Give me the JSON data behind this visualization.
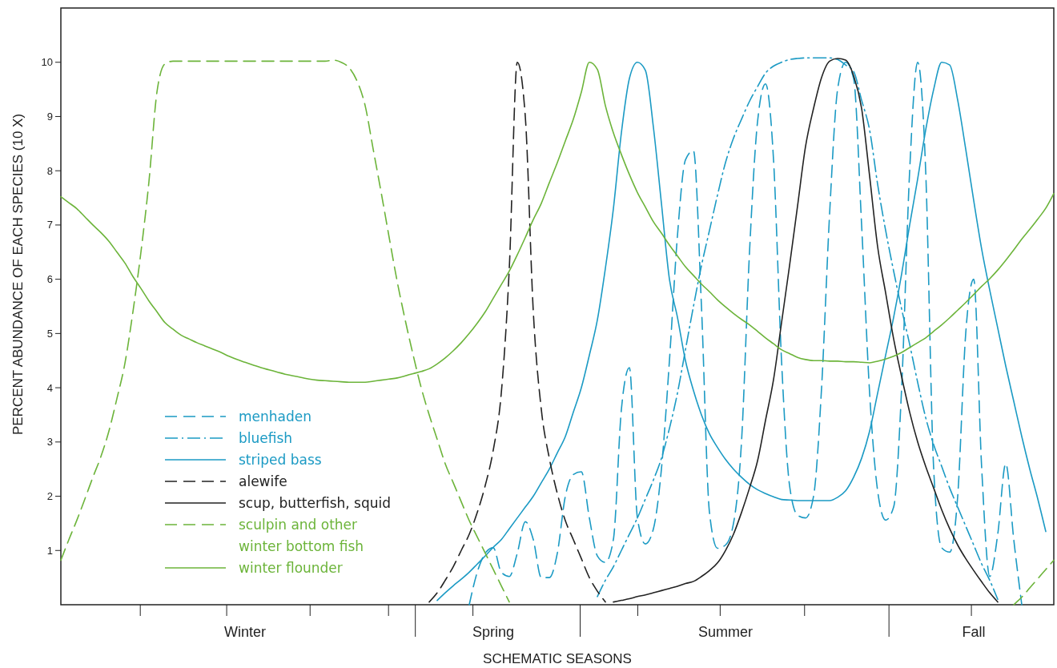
{
  "chart_data": {
    "type": "line",
    "xlabel": "SCHEMATIC SEASONS",
    "ylabel": "PERCENT ABUNDANCE OF EACH SPECIES (10 X)",
    "categories": [
      null,
      null,
      null,
      null,
      null,
      null,
      null,
      null,
      null,
      null,
      null,
      null,
      null,
      null,
      null,
      null,
      null,
      null,
      null,
      null,
      null,
      null,
      null,
      "Winter",
      null,
      null,
      null,
      null,
      null,
      null,
      null,
      null,
      null,
      null,
      null,
      null,
      null,
      null,
      null,
      null,
      null,
      null,
      null,
      null,
      null,
      null,
      null,
      null,
      null,
      null,
      null,
      null,
      null,
      null,
      "Spring",
      null,
      null,
      null,
      null,
      null,
      null,
      null,
      null,
      null,
      null,
      null,
      null,
      null,
      null,
      null,
      null,
      null,
      null,
      null,
      null,
      null,
      null,
      null,
      null,
      null,
      null,
      null,
      null,
      "Summer",
      null,
      null,
      null,
      null,
      null,
      null,
      null,
      null,
      null,
      null,
      null,
      null,
      null,
      null,
      null,
      null,
      null,
      null,
      null,
      null,
      null,
      null,
      null,
      null,
      null,
      null,
      null,
      null,
      null,
      null,
      "Fall",
      null,
      null,
      null,
      null,
      null,
      null,
      null,
      null,
      null,
      null
    ],
    "ylim": [
      0,
      11
    ],
    "yticks": [
      1,
      2,
      3,
      4,
      5,
      6,
      7,
      8,
      9,
      10
    ],
    "legend": "bottom left",
    "series": [
      {
        "name": "menhaden",
        "color": "#1b9ac4",
        "line_style": "dashed",
        "values": [
          null,
          null,
          null,
          null,
          null,
          null,
          null,
          null,
          null,
          null,
          null,
          null,
          null,
          null,
          null,
          null,
          null,
          null,
          null,
          null,
          null,
          null,
          null,
          null,
          null,
          null,
          null,
          null,
          null,
          null,
          null,
          null,
          null,
          null,
          null,
          null,
          null,
          null,
          null,
          null,
          null,
          null,
          null,
          null,
          null,
          null,
          null,
          null,
          null,
          null,
          null,
          0.0,
          0.6,
          0.95,
          1.05,
          0.6,
          0.52,
          0.95,
          1.53,
          1.2,
          0.5,
          0.5,
          0.95,
          2.0,
          2.4,
          2.45,
          1.6,
          0.9,
          0.78,
          1.2,
          3.6,
          4.37,
          1.6,
          1.12,
          1.4,
          2.5,
          4.5,
          6.8,
          8.2,
          8.37,
          5.5,
          1.7,
          1.04,
          1.1,
          1.5,
          3.0,
          6.5,
          8.9,
          9.6,
          8.2,
          4.5,
          2.2,
          1.65,
          1.6,
          2.0,
          4.0,
          7.2,
          9.5,
          10.0,
          9.7,
          7.0,
          3.9,
          2.1,
          1.56,
          1.8,
          4.0,
          8.0,
          10.0,
          8.0,
          2.5,
          1.05,
          0.97,
          2.0,
          5.0,
          6.0,
          2.5,
          0.52,
          1.3,
          2.6,
          1.2,
          0.0,
          null,
          null,
          null,
          null
        ]
      },
      {
        "name": "bluefish",
        "color": "#1b9ac4",
        "line_style": "dashdot",
        "values": [
          null,
          null,
          null,
          null,
          null,
          null,
          null,
          null,
          null,
          null,
          null,
          null,
          null,
          null,
          null,
          null,
          null,
          null,
          null,
          null,
          null,
          null,
          null,
          null,
          null,
          null,
          null,
          null,
          null,
          null,
          null,
          null,
          null,
          null,
          null,
          null,
          null,
          null,
          null,
          null,
          null,
          null,
          null,
          null,
          null,
          null,
          null,
          null,
          null,
          null,
          null,
          null,
          null,
          null,
          null,
          null,
          null,
          null,
          null,
          null,
          null,
          null,
          null,
          null,
          null,
          null,
          null,
          0.15,
          0.45,
          0.7,
          1.0,
          1.3,
          1.6,
          1.95,
          2.3,
          2.7,
          3.25,
          3.9,
          4.7,
          5.5,
          6.25,
          6.9,
          7.55,
          8.15,
          8.6,
          8.95,
          9.28,
          9.55,
          9.8,
          9.93,
          10.0,
          10.05,
          10.07,
          10.08,
          10.08,
          10.08,
          10.08,
          10.05,
          9.95,
          9.83,
          9.3,
          8.75,
          7.75,
          6.9,
          6.15,
          5.45,
          4.8,
          4.1,
          3.45,
          2.95,
          2.55,
          2.15,
          1.8,
          1.45,
          1.1,
          0.75,
          0.45,
          0.1,
          null,
          null,
          null,
          null,
          null,
          null,
          null
        ]
      },
      {
        "name": "striped bass",
        "color": "#1b9ac4",
        "line_style": "solid",
        "values": [
          null,
          null,
          null,
          null,
          null,
          null,
          null,
          null,
          null,
          null,
          null,
          null,
          null,
          null,
          null,
          null,
          null,
          null,
          null,
          null,
          null,
          null,
          null,
          null,
          null,
          null,
          null,
          null,
          null,
          null,
          null,
          null,
          null,
          null,
          null,
          null,
          null,
          null,
          null,
          null,
          null,
          null,
          null,
          null,
          null,
          null,
          null,
          0.08,
          0.22,
          0.35,
          0.47,
          0.6,
          0.75,
          0.9,
          1.06,
          1.2,
          1.4,
          1.6,
          1.8,
          2.0,
          2.25,
          2.5,
          2.8,
          3.1,
          3.55,
          4.0,
          4.6,
          5.25,
          6.2,
          7.3,
          8.7,
          9.7,
          10.0,
          9.85,
          8.8,
          7.4,
          6.0,
          5.3,
          4.5,
          3.95,
          3.5,
          3.15,
          2.9,
          2.68,
          2.5,
          2.35,
          2.22,
          2.12,
          2.05,
          1.99,
          1.94,
          1.93,
          1.92,
          1.92,
          1.92,
          1.92,
          1.92,
          1.98,
          2.1,
          2.35,
          2.7,
          3.2,
          3.9,
          4.6,
          5.3,
          6.1,
          7.0,
          7.85,
          8.75,
          9.5,
          10.0,
          9.95,
          9.3,
          8.4,
          7.45,
          6.55,
          5.8,
          5.1,
          4.4,
          3.75,
          3.1,
          2.5,
          1.95,
          1.35,
          null
        ]
      },
      {
        "name": "alewife",
        "color": "#222222",
        "line_style": "dashed",
        "values": [
          null,
          null,
          null,
          null,
          null,
          null,
          null,
          null,
          null,
          null,
          null,
          null,
          null,
          null,
          null,
          null,
          null,
          null,
          null,
          null,
          null,
          null,
          null,
          null,
          null,
          null,
          null,
          null,
          null,
          null,
          null,
          null,
          null,
          null,
          null,
          null,
          null,
          null,
          null,
          null,
          null,
          null,
          null,
          null,
          null,
          null,
          0.05,
          0.22,
          0.45,
          0.7,
          1.0,
          1.3,
          1.7,
          2.2,
          2.85,
          3.9,
          6.2,
          10.0,
          9.0,
          5.4,
          3.6,
          2.7,
          2.05,
          1.55,
          1.2,
          0.85,
          0.5,
          0.25,
          0.05,
          null,
          null,
          null,
          null,
          null,
          null,
          null,
          null,
          null,
          null,
          null,
          null,
          null,
          null,
          null,
          null,
          null,
          null,
          null,
          null,
          null,
          null,
          null,
          null,
          null,
          null,
          null,
          null,
          null,
          null,
          null,
          null,
          null,
          null,
          null,
          null,
          null,
          null,
          null,
          null,
          null,
          null,
          null,
          null,
          null,
          null,
          null,
          null,
          null,
          null,
          null,
          null,
          null,
          null,
          null,
          null
        ]
      },
      {
        "name": "scup, butterfish, squid",
        "color": "#222222",
        "line_style": "solid",
        "values": [
          null,
          null,
          null,
          null,
          null,
          null,
          null,
          null,
          null,
          null,
          null,
          null,
          null,
          null,
          null,
          null,
          null,
          null,
          null,
          null,
          null,
          null,
          null,
          null,
          null,
          null,
          null,
          null,
          null,
          null,
          null,
          null,
          null,
          null,
          null,
          null,
          null,
          null,
          null,
          null,
          null,
          null,
          null,
          null,
          null,
          null,
          null,
          null,
          null,
          null,
          null,
          null,
          null,
          null,
          null,
          null,
          null,
          null,
          null,
          null,
          null,
          null,
          null,
          null,
          null,
          null,
          null,
          null,
          null,
          0.05,
          0.08,
          0.11,
          0.15,
          0.18,
          0.22,
          0.26,
          0.3,
          0.34,
          0.39,
          0.43,
          0.52,
          0.63,
          0.77,
          1.0,
          1.3,
          1.7,
          2.15,
          2.65,
          3.4,
          4.15,
          5.2,
          6.25,
          7.35,
          8.45,
          9.15,
          9.72,
          10.02,
          10.07,
          10.04,
          9.75,
          9.15,
          7.9,
          6.6,
          5.75,
          4.9,
          4.2,
          3.55,
          3.0,
          2.55,
          2.15,
          1.75,
          1.4,
          1.1,
          0.85,
          0.63,
          0.42,
          0.22,
          0.05,
          null,
          null,
          null,
          null,
          null,
          null,
          null
        ]
      },
      {
        "name": "sculpin and other\nwinter bottom fish",
        "color": "#6cb43a",
        "line_style": "dashed",
        "values": [
          0.82,
          1.2,
          1.56,
          1.95,
          2.35,
          2.73,
          3.2,
          3.8,
          4.45,
          5.4,
          6.5,
          7.8,
          9.45,
          9.97,
          10.02,
          10.02,
          10.02,
          10.02,
          10.02,
          10.02,
          10.02,
          10.02,
          10.02,
          10.02,
          10.02,
          10.02,
          10.02,
          10.02,
          10.02,
          10.02,
          10.02,
          10.02,
          10.02,
          10.02,
          10.04,
          10.0,
          9.9,
          9.65,
          9.2,
          8.4,
          7.6,
          6.77,
          5.96,
          5.25,
          4.6,
          4.0,
          3.5,
          3.05,
          2.6,
          2.25,
          1.9,
          1.55,
          1.25,
          0.95,
          0.65,
          0.35,
          0.05,
          null,
          null,
          null,
          null,
          null,
          null,
          null,
          null,
          null,
          null,
          null,
          null,
          null,
          null,
          null,
          null,
          null,
          null,
          null,
          null,
          null,
          null,
          null,
          null,
          null,
          null,
          null,
          null,
          null,
          null,
          null,
          null,
          null,
          null,
          null,
          null,
          null,
          null,
          null,
          null,
          null,
          null,
          null,
          null,
          null,
          null,
          null,
          null,
          null,
          null,
          null,
          null,
          null,
          null,
          null,
          null,
          null,
          null,
          null,
          null,
          null,
          null,
          0.0,
          0.14,
          0.31,
          0.48,
          0.65,
          0.82
        ]
      },
      {
        "name": "winter flounder",
        "color": "#6cb43a",
        "line_style": "solid",
        "values": [
          7.52,
          7.41,
          7.3,
          7.15,
          7.0,
          6.86,
          6.7,
          6.5,
          6.3,
          6.05,
          5.83,
          5.6,
          5.4,
          5.2,
          5.08,
          4.97,
          4.9,
          4.83,
          4.77,
          4.71,
          4.65,
          4.58,
          4.52,
          4.47,
          4.42,
          4.37,
          4.33,
          4.29,
          4.25,
          4.22,
          4.19,
          4.16,
          4.14,
          4.13,
          4.12,
          4.11,
          4.1,
          4.1,
          4.1,
          4.12,
          4.14,
          4.16,
          4.18,
          4.22,
          4.26,
          4.3,
          4.35,
          4.44,
          4.55,
          4.68,
          4.83,
          5.0,
          5.19,
          5.4,
          5.65,
          5.9,
          6.15,
          6.45,
          6.77,
          7.1,
          7.4,
          7.78,
          8.15,
          8.55,
          8.95,
          9.45,
          10.0,
          9.87,
          9.2,
          8.7,
          8.3,
          7.93,
          7.6,
          7.33,
          7.06,
          6.85,
          6.63,
          6.43,
          6.23,
          6.07,
          5.91,
          5.77,
          5.62,
          5.49,
          5.37,
          5.26,
          5.16,
          5.04,
          4.92,
          4.81,
          4.7,
          4.63,
          4.56,
          4.52,
          4.5,
          4.5,
          4.49,
          4.49,
          4.48,
          4.48,
          4.47,
          4.46,
          4.49,
          4.53,
          4.58,
          4.65,
          4.74,
          4.83,
          4.92,
          5.04,
          5.16,
          5.29,
          5.43,
          5.57,
          5.72,
          5.87,
          6.01,
          6.17,
          6.35,
          6.54,
          6.74,
          6.92,
          7.11,
          7.31,
          7.58
        ]
      }
    ]
  }
}
